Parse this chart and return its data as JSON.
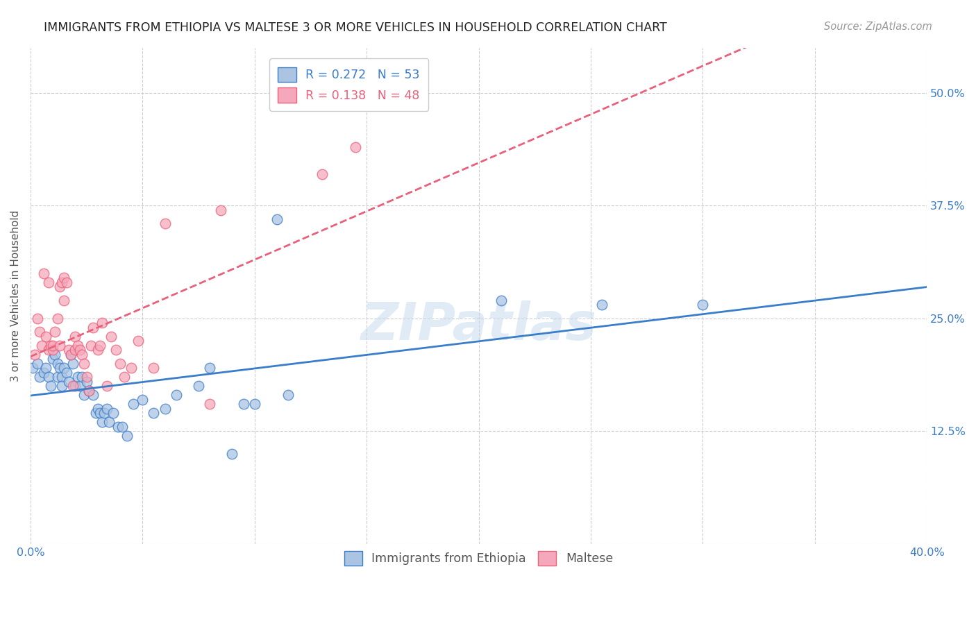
{
  "title": "IMMIGRANTS FROM ETHIOPIA VS MALTESE 3 OR MORE VEHICLES IN HOUSEHOLD CORRELATION CHART",
  "source": "Source: ZipAtlas.com",
  "ylabel": "3 or more Vehicles in Household",
  "x_min": 0.0,
  "x_max": 0.4,
  "y_min": 0.0,
  "y_max": 0.55,
  "x_ticks": [
    0.0,
    0.05,
    0.1,
    0.15,
    0.2,
    0.25,
    0.3,
    0.35,
    0.4
  ],
  "y_ticks": [
    0.0,
    0.125,
    0.25,
    0.375,
    0.5
  ],
  "y_tick_labels": [
    "",
    "12.5%",
    "25.0%",
    "37.5%",
    "50.0%"
  ],
  "grid_color": "#cccccc",
  "background_color": "#ffffff",
  "ethiopia_color": "#aac4e2",
  "maltese_color": "#f5a8bb",
  "ethiopia_line_color": "#3a7dc9",
  "maltese_line_color": "#e8607a",
  "r_ethiopia": 0.272,
  "n_ethiopia": 53,
  "r_maltese": 0.138,
  "n_maltese": 48,
  "legend_ethiopia": "Immigrants from Ethiopia",
  "legend_maltese": "Maltese",
  "ethiopia_x": [
    0.001,
    0.003,
    0.004,
    0.006,
    0.007,
    0.008,
    0.009,
    0.01,
    0.011,
    0.012,
    0.012,
    0.013,
    0.014,
    0.014,
    0.015,
    0.016,
    0.017,
    0.018,
    0.019,
    0.02,
    0.021,
    0.022,
    0.023,
    0.024,
    0.025,
    0.026,
    0.028,
    0.029,
    0.03,
    0.031,
    0.032,
    0.033,
    0.034,
    0.035,
    0.037,
    0.039,
    0.041,
    0.043,
    0.046,
    0.05,
    0.055,
    0.06,
    0.065,
    0.075,
    0.08,
    0.09,
    0.095,
    0.1,
    0.11,
    0.115,
    0.21,
    0.255,
    0.3
  ],
  "ethiopia_y": [
    0.195,
    0.2,
    0.185,
    0.19,
    0.195,
    0.185,
    0.175,
    0.205,
    0.21,
    0.2,
    0.185,
    0.195,
    0.185,
    0.175,
    0.195,
    0.19,
    0.18,
    0.21,
    0.2,
    0.175,
    0.185,
    0.175,
    0.185,
    0.165,
    0.18,
    0.17,
    0.165,
    0.145,
    0.15,
    0.145,
    0.135,
    0.145,
    0.15,
    0.135,
    0.145,
    0.13,
    0.13,
    0.12,
    0.155,
    0.16,
    0.145,
    0.15,
    0.165,
    0.175,
    0.195,
    0.1,
    0.155,
    0.155,
    0.36,
    0.165,
    0.27,
    0.265,
    0.265
  ],
  "maltese_x": [
    0.002,
    0.003,
    0.004,
    0.005,
    0.006,
    0.007,
    0.008,
    0.008,
    0.009,
    0.01,
    0.01,
    0.011,
    0.012,
    0.013,
    0.013,
    0.014,
    0.015,
    0.015,
    0.016,
    0.017,
    0.018,
    0.019,
    0.02,
    0.02,
    0.021,
    0.022,
    0.023,
    0.024,
    0.025,
    0.026,
    0.027,
    0.028,
    0.03,
    0.031,
    0.032,
    0.034,
    0.036,
    0.038,
    0.04,
    0.042,
    0.045,
    0.048,
    0.055,
    0.06,
    0.08,
    0.085,
    0.13,
    0.145
  ],
  "maltese_y": [
    0.21,
    0.25,
    0.235,
    0.22,
    0.3,
    0.23,
    0.215,
    0.29,
    0.22,
    0.215,
    0.22,
    0.235,
    0.25,
    0.22,
    0.285,
    0.29,
    0.295,
    0.27,
    0.29,
    0.215,
    0.21,
    0.175,
    0.215,
    0.23,
    0.22,
    0.215,
    0.21,
    0.2,
    0.185,
    0.17,
    0.22,
    0.24,
    0.215,
    0.22,
    0.245,
    0.175,
    0.23,
    0.215,
    0.2,
    0.185,
    0.195,
    0.225,
    0.195,
    0.355,
    0.155,
    0.37,
    0.41,
    0.44
  ],
  "watermark": "ZIPatlas",
  "title_fontsize": 12.5,
  "tick_label_fontsize": 11.5,
  "axis_label_fontsize": 11,
  "legend_fontsize": 12.5,
  "source_fontsize": 10.5
}
